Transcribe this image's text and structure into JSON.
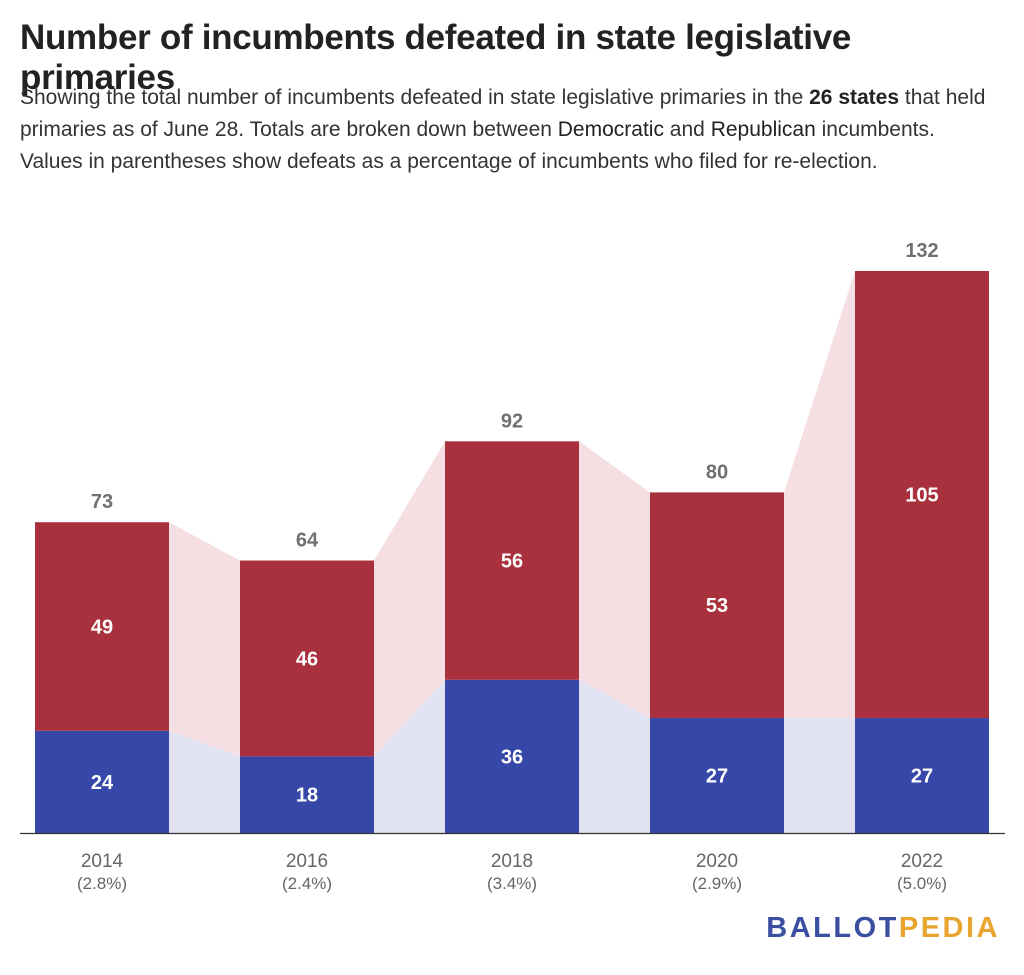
{
  "header": {
    "title": "Number of incumbents defeated in state legislative primaries",
    "subtitle": {
      "t1": "Showing the total number of incumbents defeated in state legislative primaries in the ",
      "b1": "26 states",
      "t2": " that held primaries as of June 28. Totals are broken down between ",
      "dem": "Democratic",
      "t3": " and ",
      "rep": "Republican",
      "t4": " incumbents. Values in parentheses show defeats as a percentage of incumbents who filed for re-election."
    }
  },
  "colors": {
    "democratic": "#3647a8",
    "republican": "#a8313d",
    "democratic_band": "#e1e3f3",
    "republican_band": "#f5dfe2",
    "total_label": "#707070",
    "axis_label": "#666666"
  },
  "chart_data": {
    "type": "bar",
    "stacked": true,
    "categories": [
      "2014",
      "2016",
      "2018",
      "2020",
      "2022"
    ],
    "category_sublabels": [
      "(2.8%)",
      "(2.4%)",
      "(3.4%)",
      "(2.9%)",
      "(5.0%)"
    ],
    "series": [
      {
        "name": "Democratic",
        "values": [
          24,
          18,
          36,
          27,
          27
        ]
      },
      {
        "name": "Republican",
        "values": [
          49,
          46,
          56,
          53,
          105
        ]
      }
    ],
    "totals": [
      73,
      64,
      92,
      80,
      132
    ],
    "ylim": [
      0,
      132
    ],
    "grid": false,
    "legend": "none"
  },
  "branding": {
    "logo_part1": "BALLOT",
    "logo_part2": "PEDIA"
  }
}
